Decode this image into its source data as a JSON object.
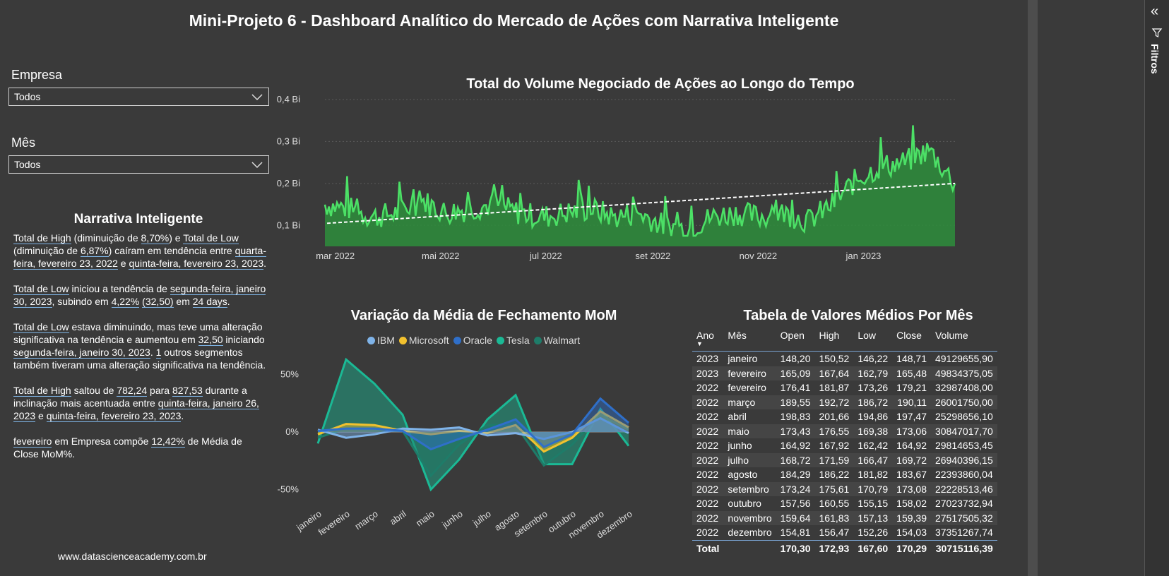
{
  "page": {
    "title": "Mini-Projeto 6 - Dashboard Analítico do Mercado de Ações com Narrativa Inteligente",
    "website": "www.datascienceacademy.com.br"
  },
  "filters_pane": {
    "label": "Filtros",
    "collapse_icon": "double-chevron-icon",
    "filter_icon": "funnel-icon"
  },
  "slicers": {
    "empresa": {
      "label": "Empresa",
      "value": "Todos"
    },
    "mes": {
      "label": "Mês",
      "value": "Todos"
    }
  },
  "narrative": {
    "title": "Narrativa Inteligente",
    "p1": {
      "a": "Total de High",
      "b": " (diminuição de ",
      "c": "8,70%",
      "d": ") e ",
      "e": "Total de Low",
      "f": " (diminuição de ",
      "g": "6,87%",
      "h": ") caíram em tendência entre ",
      "i": "quarta-feira, fevereiro 23, 2022",
      "j": " e ",
      "k": "quinta-feira, fevereiro 23, 2023",
      "l": "."
    },
    "p2": {
      "a": "Total de Low",
      "b": " iniciou a tendência de ",
      "c": "segunda-feira, janeiro 30, 2023",
      "d": ", subindo em ",
      "e": "4,22%",
      "f": " ",
      "g": "(32,50)",
      "h": " em ",
      "i": "24 days",
      "j": "."
    },
    "p3": {
      "a": "Total de Low",
      "b": " estava diminuindo, mas teve uma alteração significativa na tendência e aumentou em ",
      "c": "32,50",
      "d": " iniciando ",
      "e": "segunda-feira, janeiro 30, 2023",
      "f": ". ",
      "g": "1",
      "h": " outros segmentos também tiveram uma alteração significativa na tendência."
    },
    "p4": {
      "a": "Total de High",
      "b": " saltou de ",
      "c": "782,24",
      "d": " para ",
      "e": "827,53",
      "f": " durante a inclinação mais acentuada entre ",
      "g": "quinta-feira, janeiro 26, 2023",
      "h": " e ",
      "i": "quinta-feira, fevereiro 23, 2023",
      "j": "."
    },
    "p5": {
      "a": "fevereiro",
      "b": " em Empresa  compõe ",
      "c": "12,42%",
      "d": " de Média de Close MoM%."
    }
  },
  "volume_chart": {
    "title": "Total do Volume Negociado de Ações ao Longo do Tempo",
    "y_ticks": [
      "0,4 Bi",
      "0,3 Bi",
      "0,2 Bi",
      "0,1 Bi"
    ],
    "x_ticks": [
      "mar 2022",
      "mai 2022",
      "jul 2022",
      "set 2022",
      "nov 2022",
      "jan 2023"
    ],
    "line_color": "#4ce066",
    "fill_color": "#2f8a3c"
  },
  "mom_chart": {
    "title": "Variação da Média de Fechamento MoM",
    "y_ticks": [
      "50%",
      "0%",
      "-50%"
    ]
  },
  "chart_data": [
    {
      "type": "area",
      "title": "Total do Volume Negociado de Ações ao Longo do Tempo",
      "x": [
        "2022-02-23",
        "2022-03-09",
        "2022-03-23",
        "2022-04-06",
        "2022-04-20",
        "2022-05-04",
        "2022-05-18",
        "2022-06-01",
        "2022-06-15",
        "2022-06-29",
        "2022-07-13",
        "2022-07-27",
        "2022-08-10",
        "2022-08-24",
        "2022-09-07",
        "2022-09-21",
        "2022-10-05",
        "2022-10-19",
        "2022-11-02",
        "2022-11-16",
        "2022-11-30",
        "2022-12-14",
        "2022-12-28",
        "2023-01-11",
        "2023-01-25",
        "2023-02-08",
        "2023-02-23"
      ],
      "values": [
        0.15,
        0.14,
        0.12,
        0.13,
        0.16,
        0.13,
        0.14,
        0.15,
        0.13,
        0.12,
        0.13,
        0.14,
        0.12,
        0.13,
        0.1,
        0.09,
        0.12,
        0.13,
        0.12,
        0.13,
        0.11,
        0.15,
        0.21,
        0.24,
        0.25,
        0.28,
        0.2
      ],
      "trend": [
        0.105,
        0.2
      ],
      "ylabel": "",
      "ylim": [
        0.05,
        0.4
      ],
      "y_unit": "Bi"
    },
    {
      "type": "area",
      "title": "Variação da Média de Fechamento MoM",
      "categories": [
        "janeiro",
        "fevereiro",
        "março",
        "abril",
        "maio",
        "junho",
        "julho",
        "agosto",
        "setembro",
        "outubro",
        "novembro",
        "dezembro"
      ],
      "series": [
        {
          "name": "IBM",
          "color": "#7fb3e8",
          "values": [
            2,
            -5,
            -2,
            3,
            2,
            4,
            -3,
            -1,
            -6,
            0,
            12,
            -1
          ]
        },
        {
          "name": "Microsoft",
          "color": "#f2c12e",
          "values": [
            -2,
            7,
            6,
            1,
            -2,
            1,
            -1,
            6,
            -17,
            -5,
            18,
            4
          ]
        },
        {
          "name": "Oracle",
          "color": "#2f6fc9",
          "values": [
            1,
            3,
            3,
            1,
            -15,
            -6,
            2,
            11,
            -13,
            -2,
            29,
            8
          ]
        },
        {
          "name": "Tesla",
          "color": "#1bb995",
          "values": [
            -10,
            63,
            42,
            15,
            -50,
            -24,
            11,
            32,
            -28,
            -28,
            20,
            -12
          ]
        },
        {
          "name": "Walmart",
          "color": "#1e7c69",
          "values": [
            -5,
            3,
            1,
            1,
            -38,
            -11,
            6,
            6,
            -29,
            -11,
            15,
            2
          ]
        }
      ],
      "yticks": [
        "50%",
        "0%",
        "-50%"
      ],
      "ylim": [
        -60,
        70
      ]
    },
    {
      "type": "table",
      "title": "Tabela de Valores Médios Por Mês",
      "columns": [
        "Ano",
        "Mês",
        "Open",
        "High",
        "Low",
        "Close",
        "Volume"
      ],
      "rows": [
        [
          "2023",
          "janeiro",
          "148,20",
          "150,52",
          "146,22",
          "148,71",
          "49129655,90"
        ],
        [
          "2023",
          "fevereiro",
          "165,09",
          "167,64",
          "162,79",
          "165,48",
          "49834375,05"
        ],
        [
          "2022",
          "fevereiro",
          "176,41",
          "181,87",
          "173,26",
          "179,21",
          "32987408,00"
        ],
        [
          "2022",
          "março",
          "189,55",
          "192,72",
          "186,72",
          "190,11",
          "26001750,00"
        ],
        [
          "2022",
          "abril",
          "198,83",
          "201,66",
          "194,86",
          "197,47",
          "25298656,10"
        ],
        [
          "2022",
          "maio",
          "173,43",
          "176,55",
          "169,38",
          "173,06",
          "30847017,70"
        ],
        [
          "2022",
          "junho",
          "164,92",
          "167,92",
          "162,42",
          "164,92",
          "29814653,45"
        ],
        [
          "2022",
          "julho",
          "168,72",
          "171,59",
          "166,47",
          "169,72",
          "26940396,15"
        ],
        [
          "2022",
          "agosto",
          "184,29",
          "186,22",
          "181,82",
          "183,67",
          "22393860,04"
        ],
        [
          "2022",
          "setembro",
          "173,24",
          "175,61",
          "170,79",
          "173,08",
          "22228513,46"
        ],
        [
          "2022",
          "outubro",
          "157,56",
          "160,55",
          "155,15",
          "158,02",
          "27023732,94"
        ],
        [
          "2022",
          "novembro",
          "159,64",
          "161,83",
          "157,13",
          "159,39",
          "27517505,32"
        ],
        [
          "2022",
          "dezembro",
          "154,81",
          "156,47",
          "152,26",
          "154,03",
          "37351267,74"
        ]
      ],
      "total": [
        "Total",
        "",
        "170,30",
        "172,93",
        "167,60",
        "170,29",
        "30715116,39"
      ]
    }
  ]
}
